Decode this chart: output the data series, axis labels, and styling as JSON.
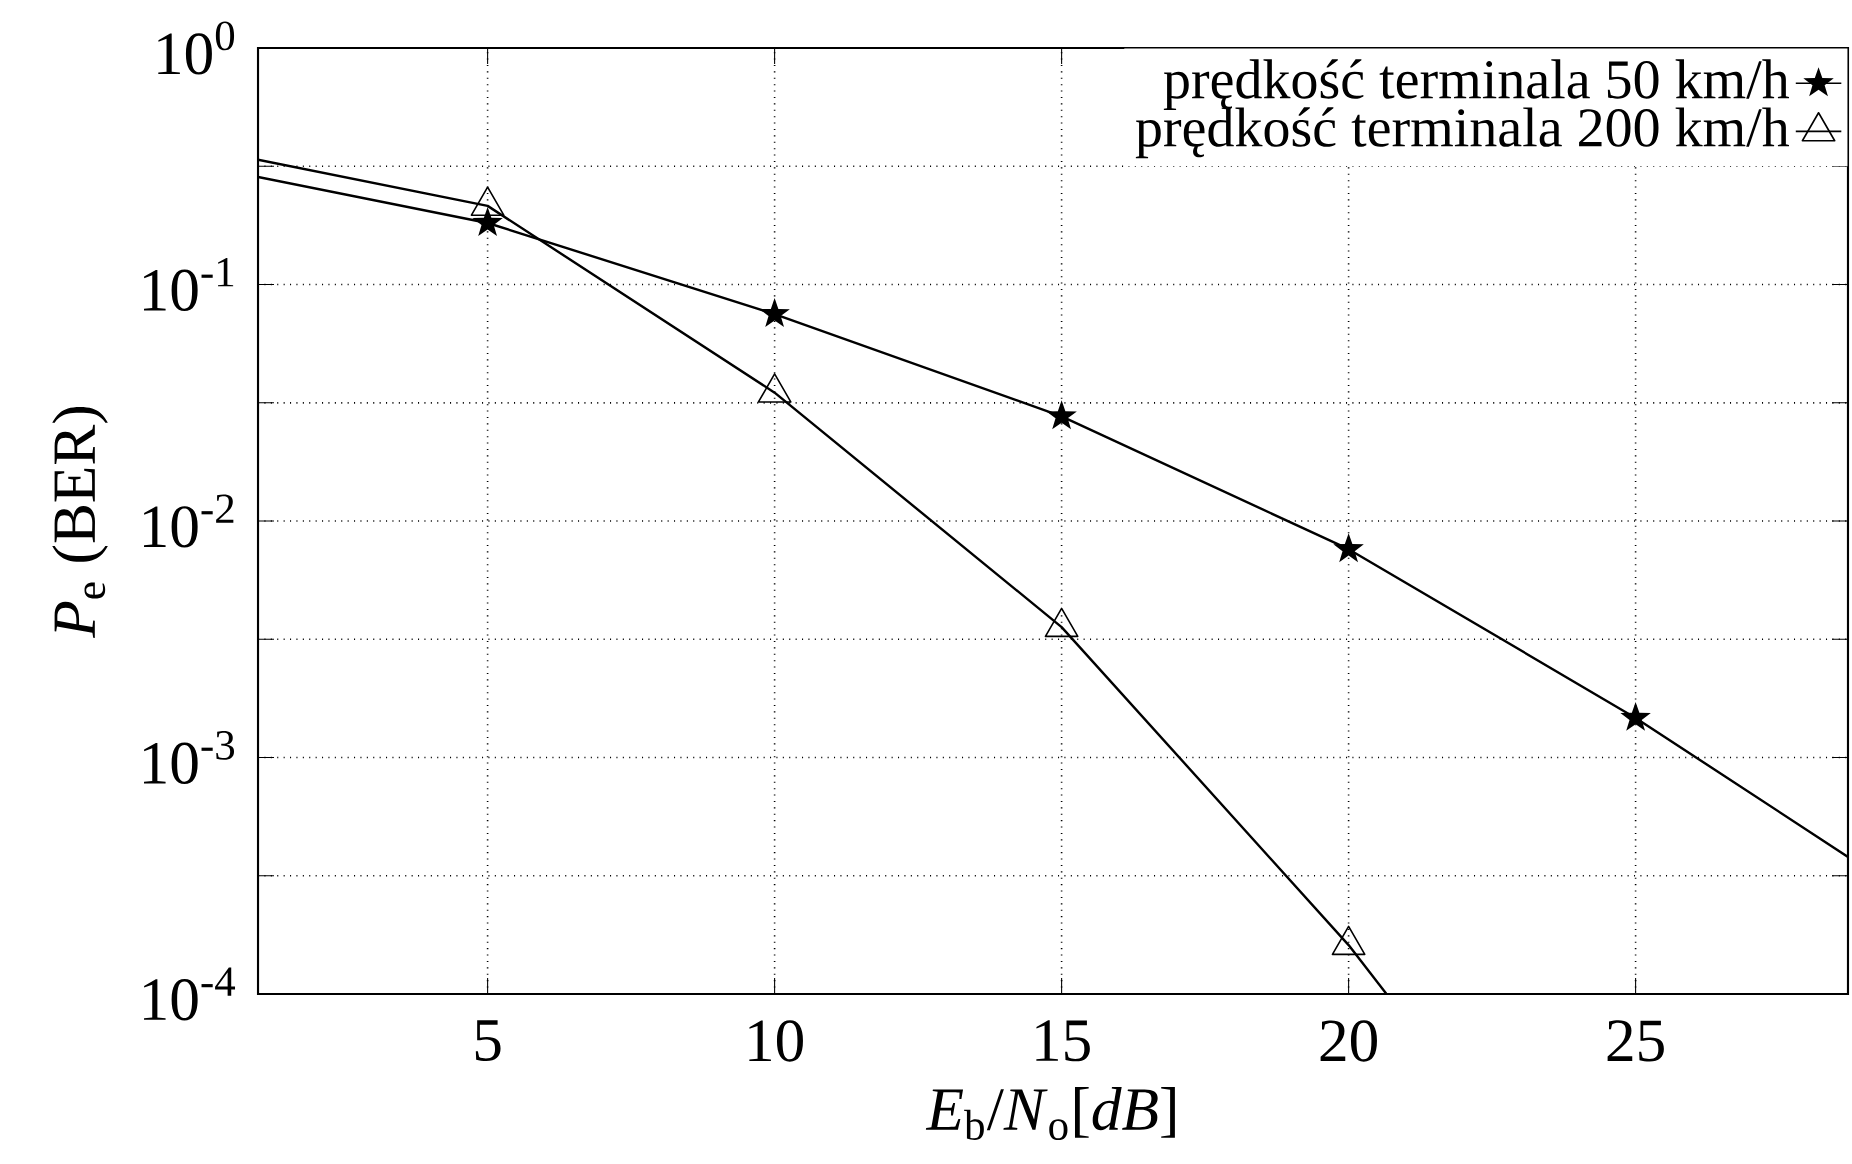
{
  "chart_data": {
    "type": "line",
    "xlabel": "*E*$_{b}$/*N*$_{o}$[*dB*]",
    "ylabel": "*P*$_{e}$ (BER)",
    "log": "y",
    "grid": true,
    "legend": "top right",
    "line_style": "solid",
    "xlim": [
      1,
      28.7
    ],
    "ylim": [
      0.0001,
      1
    ],
    "xticks": [
      5,
      10,
      15,
      20,
      25
    ],
    "yticks": [
      {
        "value": 1,
        "label": "10$^{0}$"
      },
      {
        "value": 0.316,
        "label": null
      },
      {
        "value": 0.1,
        "label": "10$^{-1}$"
      },
      {
        "value": 0.0316,
        "label": null
      },
      {
        "value": 0.01,
        "label": "10$^{-2}$"
      },
      {
        "value": 0.00316,
        "label": null
      },
      {
        "value": 0.001,
        "label": "10$^{-3}$"
      },
      {
        "value": 0.000316,
        "label": null
      },
      {
        "value": 0.0001,
        "label": "10$^{-4}$"
      }
    ],
    "series": [
      {
        "name": "prędkość terminala 50 km/h",
        "color": "#000000",
        "marker": "star",
        "x": [
          1,
          5,
          10,
          15,
          20,
          25,
          28.7
        ],
        "values": [
          0.285,
          0.182,
          0.075,
          0.0277,
          0.0076,
          0.00147,
          0.00038
        ]
      },
      {
        "name": "prędkość terminala 200 km/h",
        "color": "#000000",
        "marker": "triangle",
        "x": [
          1,
          5,
          10,
          15,
          20,
          20.66
        ],
        "values": [
          0.337,
          0.215,
          0.0349,
          0.00356,
          0.000161,
          0.0001
        ]
      }
    ]
  }
}
